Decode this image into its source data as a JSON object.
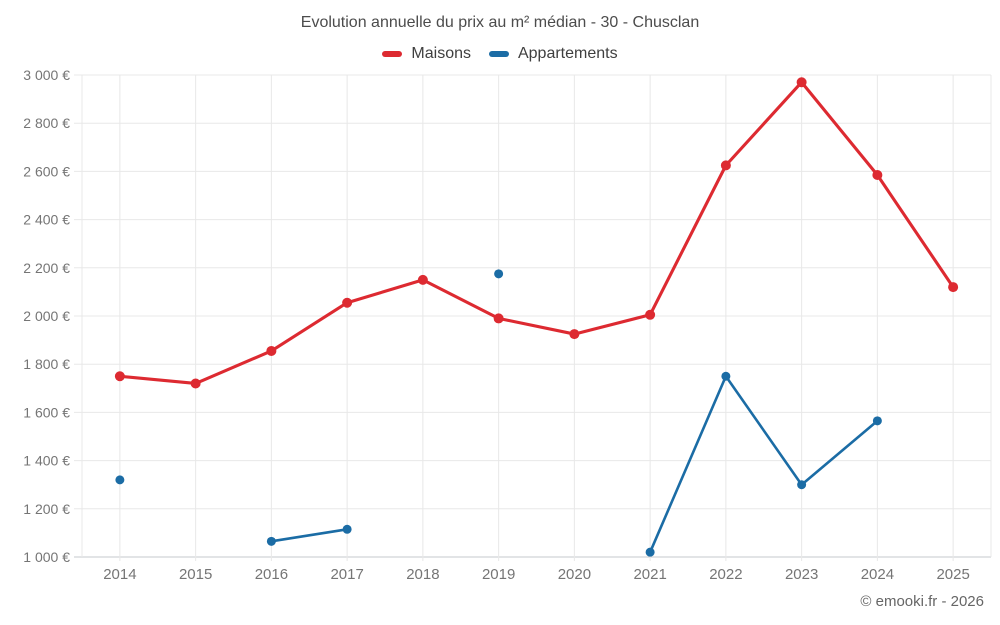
{
  "page": {
    "copyright": "© emooki.fr - 2026"
  },
  "chart_data": {
    "type": "line",
    "title": "Evolution annuelle du prix au m² médian - 30 - Chusclan",
    "categories": [
      "2014",
      "2015",
      "2016",
      "2017",
      "2018",
      "2019",
      "2020",
      "2021",
      "2022",
      "2023",
      "2024",
      "2025"
    ],
    "series": [
      {
        "name": "Maisons",
        "color": "#dd2a31",
        "values": [
          1750,
          1720,
          1855,
          2055,
          2150,
          1990,
          1925,
          2005,
          2625,
          2970,
          2585,
          2120
        ]
      },
      {
        "name": "Appartements",
        "color": "#1b6ca5",
        "values": [
          1320,
          null,
          1065,
          1115,
          null,
          2175,
          null,
          1020,
          1750,
          1300,
          1565,
          null
        ]
      }
    ],
    "ylim": [
      1000,
      3000
    ],
    "ytick_step": 200,
    "ytick_suffix": " €",
    "grid": true,
    "legend_position": "top",
    "xlabel": "",
    "ylabel": ""
  }
}
